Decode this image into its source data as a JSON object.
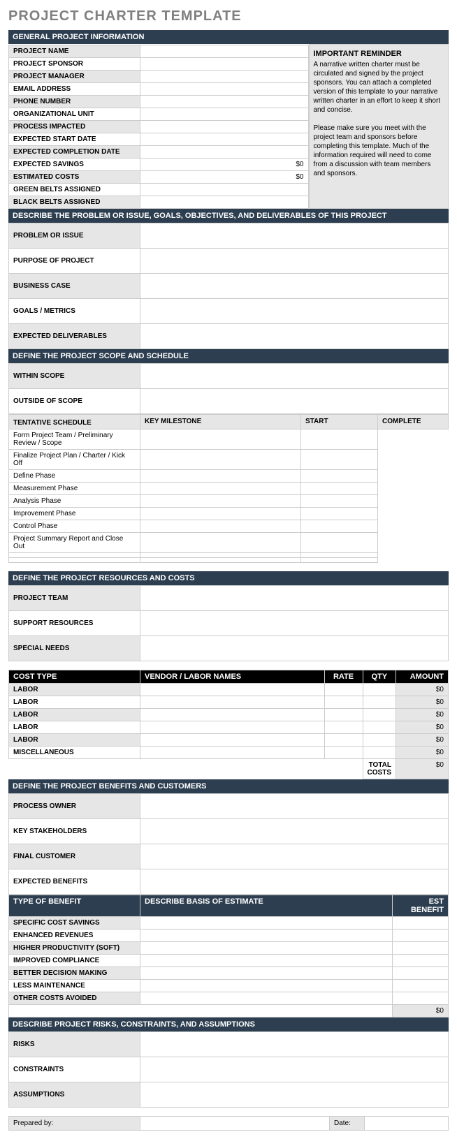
{
  "title": "PROJECT CHARTER TEMPLATE",
  "colors": {
    "section_header_bg": "#2c3e50",
    "section_header_text": "#ffffff",
    "black_header_bg": "#000000",
    "label_bg_gray": "#e6e6e6",
    "label_bg_white": "#ffffff",
    "border": "#cccccc",
    "title_color": "#808080"
  },
  "sections": {
    "general": {
      "header": "GENERAL PROJECT INFORMATION",
      "rows": [
        {
          "label": "PROJECT NAME",
          "value": "",
          "bg": "gray"
        },
        {
          "label": "PROJECT SPONSOR",
          "value": "",
          "bg": "white"
        },
        {
          "label": "PROJECT MANAGER",
          "value": "",
          "bg": "gray"
        },
        {
          "label": "EMAIL ADDRESS",
          "value": "",
          "bg": "white"
        },
        {
          "label": "PHONE NUMBER",
          "value": "",
          "bg": "gray"
        },
        {
          "label": "ORGANIZATIONAL UNIT",
          "value": "",
          "bg": "white"
        },
        {
          "label": "PROCESS IMPACTED",
          "value": "",
          "bg": "gray"
        },
        {
          "label": "EXPECTED START DATE",
          "value": "",
          "bg": "white"
        },
        {
          "label": "EXPECTED COMPLETION DATE",
          "value": "",
          "bg": "gray"
        },
        {
          "label": "EXPECTED SAVINGS",
          "value": "$0",
          "bg": "white",
          "align": "right"
        },
        {
          "label": "ESTIMATED COSTS",
          "value": "$0",
          "bg": "gray",
          "align": "right"
        },
        {
          "label": "GREEN BELTS ASSIGNED",
          "value": "",
          "bg": "white"
        },
        {
          "label": "BLACK BELTS ASSIGNED",
          "value": "",
          "bg": "gray"
        }
      ],
      "reminder": {
        "title": "IMPORTANT REMINDER",
        "p1": "A narrative written charter must be circulated and signed by the project sponsors. You can attach a completed version of this template to your narrative written charter in an effort to keep it short and concise.",
        "p2": "Please make sure you meet with the project team and sponsors before completing this template. Much of the information required will need to come from a discussion with team members and sponsors."
      }
    },
    "describe": {
      "header": "DESCRIBE THE PROBLEM OR ISSUE, GOALS, OBJECTIVES, AND DELIVERABLES OF THIS PROJECT",
      "rows": [
        {
          "label": "PROBLEM OR ISSUE",
          "bg": "gray"
        },
        {
          "label": "PURPOSE OF PROJECT",
          "bg": "white"
        },
        {
          "label": "BUSINESS CASE",
          "bg": "gray"
        },
        {
          "label": "GOALS / METRICS",
          "bg": "white"
        },
        {
          "label": "EXPECTED DELIVERABLES",
          "bg": "gray"
        }
      ]
    },
    "scope": {
      "header": "DEFINE THE PROJECT SCOPE AND SCHEDULE",
      "within": "WITHIN SCOPE",
      "outside": "OUTSIDE OF  SCOPE",
      "tentative": "TENTATIVE SCHEDULE",
      "sched_headers": {
        "milestone": "KEY MILESTONE",
        "start": "START",
        "complete": "COMPLETE"
      },
      "milestones": [
        "Form Project Team / Preliminary Review / Scope",
        "Finalize Project Plan / Charter / Kick Off",
        "Define Phase",
        "Measurement Phase",
        "Analysis Phase",
        "Improvement Phase",
        "Control Phase",
        "Project Summary Report and Close Out",
        "",
        ""
      ]
    },
    "resources": {
      "header": "DEFINE THE PROJECT RESOURCES AND COSTS",
      "rows": [
        {
          "label": "PROJECT TEAM",
          "bg": "gray"
        },
        {
          "label": "SUPPORT RESOURCES",
          "bg": "white"
        },
        {
          "label": "SPECIAL NEEDS",
          "bg": "gray"
        }
      ]
    },
    "costs": {
      "headers": {
        "type": "COST TYPE",
        "vendor": "VENDOR / LABOR NAMES",
        "rate": "RATE",
        "qty": "QTY",
        "amount": "AMOUNT"
      },
      "rows": [
        {
          "type": "LABOR",
          "amount": "$0",
          "bg": "gray"
        },
        {
          "type": "LABOR",
          "amount": "$0",
          "bg": "white"
        },
        {
          "type": "LABOR",
          "amount": "$0",
          "bg": "gray"
        },
        {
          "type": "LABOR",
          "amount": "$0",
          "bg": "white"
        },
        {
          "type": "LABOR",
          "amount": "$0",
          "bg": "gray"
        },
        {
          "type": "MISCELLANEOUS",
          "amount": "$0",
          "bg": "white"
        }
      ],
      "total_label": "TOTAL COSTS",
      "total_value": "$0"
    },
    "benefits": {
      "header": "DEFINE THE PROJECT BENEFITS AND CUSTOMERS",
      "rows": [
        {
          "label": "PROCESS OWNER",
          "bg": "gray"
        },
        {
          "label": "KEY STAKEHOLDERS",
          "bg": "white"
        },
        {
          "label": "FINAL CUSTOMER",
          "bg": "gray"
        },
        {
          "label": "EXPECTED BENEFITS",
          "bg": "white"
        }
      ]
    },
    "benefit_types": {
      "headers": {
        "type": "TYPE OF BENEFIT",
        "basis": "DESCRIBE BASIS OF ESTIMATE",
        "est": "EST BENEFIT"
      },
      "rows": [
        {
          "type": "SPECIFIC COST SAVINGS",
          "bg": "gray"
        },
        {
          "type": "ENHANCED REVENUES",
          "bg": "white"
        },
        {
          "type": "HIGHER PRODUCTIVITY (SOFT)",
          "bg": "gray"
        },
        {
          "type": "IMPROVED COMPLIANCE",
          "bg": "white"
        },
        {
          "type": "BETTER DECISION MAKING",
          "bg": "gray"
        },
        {
          "type": "LESS MAINTENANCE",
          "bg": "white"
        },
        {
          "type": "OTHER COSTS AVOIDED",
          "bg": "gray"
        }
      ],
      "total": "$0"
    },
    "risks": {
      "header": "DESCRIBE PROJECT RISKS, CONSTRAINTS, AND ASSUMPTIONS",
      "rows": [
        {
          "label": "RISKS",
          "bg": "gray"
        },
        {
          "label": "CONSTRAINTS",
          "bg": "white"
        },
        {
          "label": "ASSUMPTIONS",
          "bg": "gray"
        }
      ]
    },
    "footer": {
      "prepared": "Prepared by:",
      "date": "Date:"
    }
  }
}
